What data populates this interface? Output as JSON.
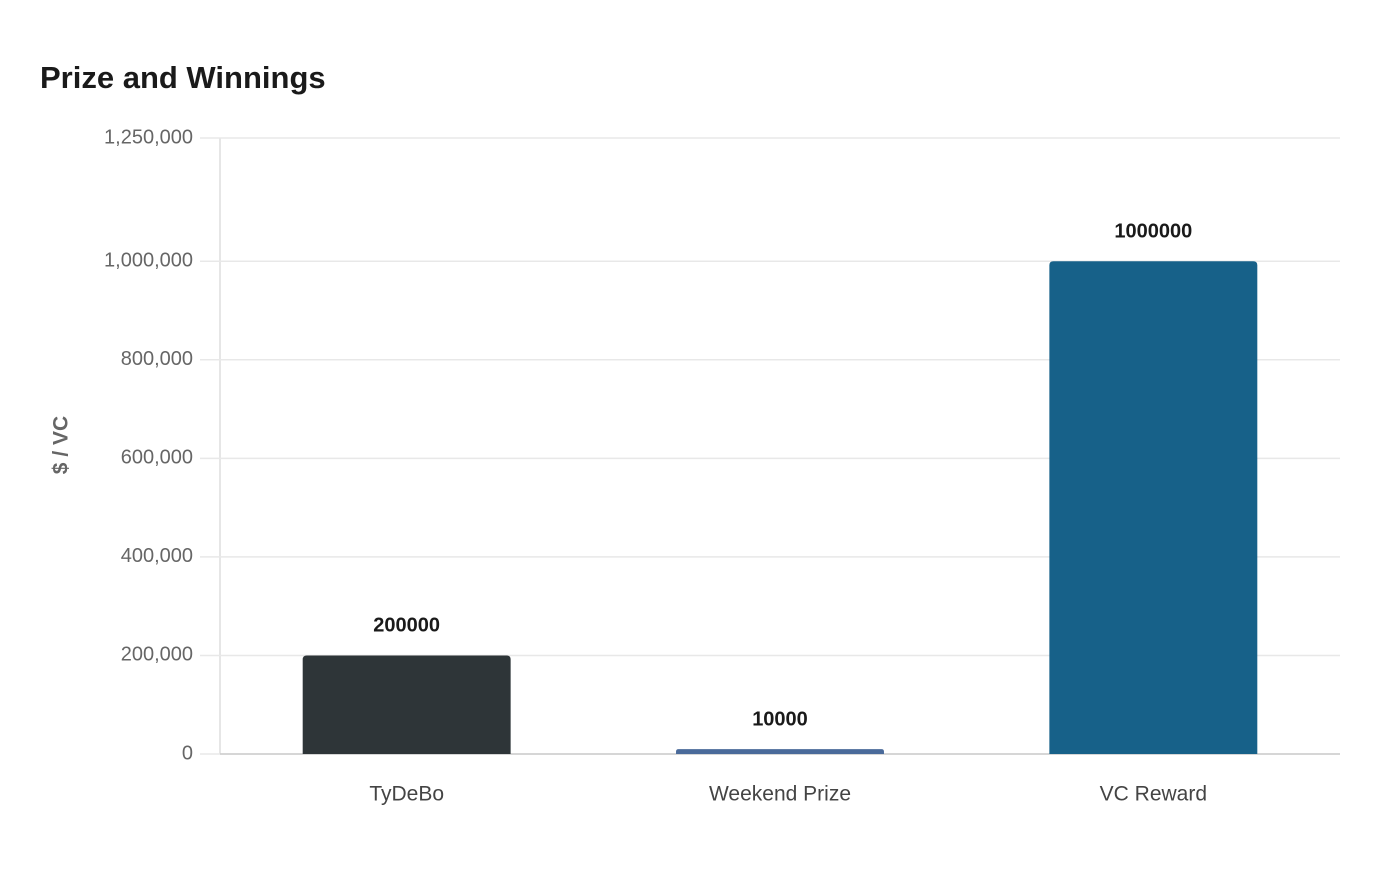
{
  "chart_data": {
    "type": "bar",
    "title": "Prize and Winnings",
    "y_label": "$ / VC",
    "categories": [
      "TyDeBo",
      "Weekend Prize",
      "VC Reward"
    ],
    "values": [
      200000,
      10000,
      1000000
    ],
    "colors": [
      "#2e3538",
      "#4a6a9a",
      "#176189"
    ],
    "ylim": [
      0,
      1250000
    ],
    "yticks": [
      0,
      {
        "value": 200000,
        "label": "200,000"
      },
      {
        "value": 400000,
        "label": "400,000"
      },
      {
        "value": 600000,
        "label": "600,000"
      },
      {
        "value": 800000,
        "label": "800,000"
      },
      {
        "value": 1000000,
        "label": "1,000,000"
      },
      {
        "value": 1250000,
        "label": "1,250,000"
      }
    ],
    "grid": true
  }
}
